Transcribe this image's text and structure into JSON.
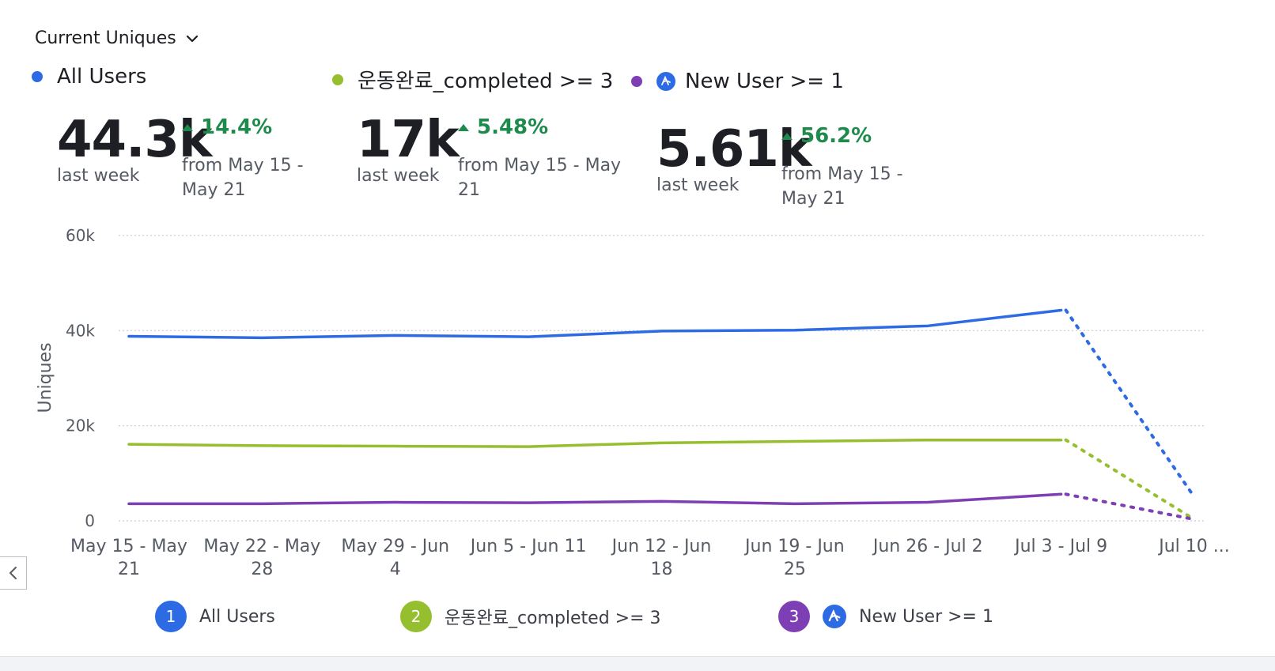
{
  "header": {
    "metric_label": "Current Uniques"
  },
  "summary": [
    {
      "name": "All Users",
      "color": "#2d6be4",
      "value": "44.3k",
      "period": "last week",
      "delta": "14.4%",
      "from_line1": "from May 15 -",
      "from_line2": "May 21",
      "icon": "dot"
    },
    {
      "name": "운동완료_completed >= 3",
      "color": "#95bf2e",
      "value": "17k",
      "period": "last week",
      "delta": "5.48%",
      "from_line1": "from May 15 - May",
      "from_line2": "21",
      "icon": "dot"
    },
    {
      "name": "New User >= 1",
      "color": "#7e3fb4",
      "value": "5.61k",
      "period": "last week",
      "delta": "56.2%",
      "from_line1": "from May 15 -",
      "from_line2": "May 21",
      "icon": "amplitude-icon"
    }
  ],
  "chart_data": {
    "type": "line",
    "ylabel": "Uniques",
    "ylim": [
      0,
      60000
    ],
    "yticks": [
      0,
      20000,
      40000,
      60000
    ],
    "ytick_labels": [
      "0",
      "20k",
      "40k",
      "60k"
    ],
    "categories": [
      [
        "May 15 - May",
        "21"
      ],
      [
        "May 22 - May",
        "28"
      ],
      [
        "May 29 - Jun",
        "4"
      ],
      [
        "Jun 5 - Jun 11"
      ],
      [
        "Jun 12 - Jun",
        "18"
      ],
      [
        "Jun 19 - Jun",
        "25"
      ],
      [
        "Jun 26 - Jul 2"
      ],
      [
        "Jul 3 - Jul 9"
      ],
      [
        "Jul 10 ..."
      ]
    ],
    "incomplete_last_point": true,
    "grid": true,
    "series": [
      {
        "name": "All Users",
        "color": "#2d6be4",
        "values": [
          38800,
          38500,
          39000,
          38700,
          39900,
          40100,
          41000,
          44300,
          5000
        ]
      },
      {
        "name": "운동완료_completed >= 3",
        "color": "#95bf2e",
        "values": [
          16100,
          15800,
          15700,
          15600,
          16400,
          16700,
          17000,
          17000,
          300
        ]
      },
      {
        "name": "New User >= 1",
        "color": "#7e3fb4",
        "values": [
          3600,
          3600,
          3900,
          3800,
          4100,
          3600,
          3900,
          5600,
          300
        ]
      }
    ]
  },
  "legend": [
    {
      "index": "1",
      "label": "All Users",
      "color": "#2d6be4",
      "icon": ""
    },
    {
      "index": "2",
      "label": "운동완료_completed >= 3",
      "color": "#95bf2e",
      "icon": ""
    },
    {
      "index": "3",
      "label": "New User >= 1",
      "color": "#7e3fb4",
      "icon": "amplitude-icon"
    }
  ]
}
